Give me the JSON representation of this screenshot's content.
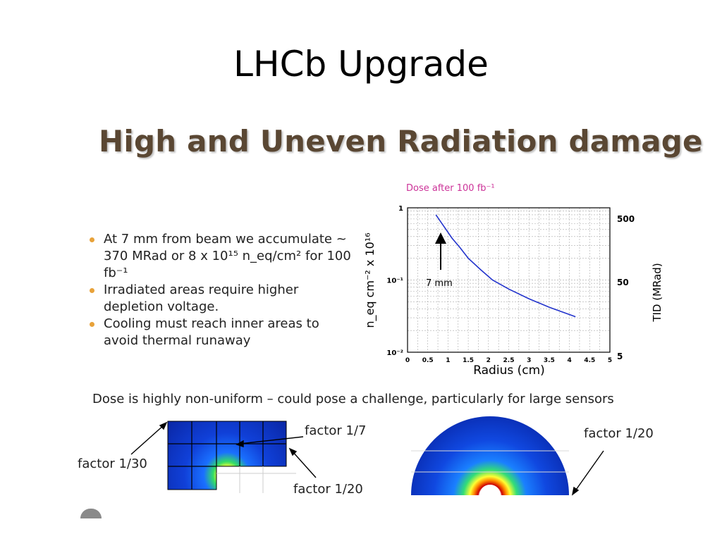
{
  "slide": {
    "title": "LHCb Upgrade",
    "subtitle": "High and Uneven Radiation damage"
  },
  "bullets": [
    {
      "text": "At 7 mm from beam we accumulate ~ 370 MRad or 8 x 10¹⁵ n_eq/cm² for 100 fb⁻¹"
    },
    {
      "text": "Irradiated areas require higher depletion voltage."
    },
    {
      "text": "Cooling must reach inner areas to avoid thermal runaway"
    }
  ],
  "dose_caption": "Dose is highly non-uniform – could pose a challenge, particularly for large sensors",
  "annotations": {
    "factor_30": "factor 1/30",
    "factor_7": "factor 1/7",
    "factor_20_left": "factor 1/20",
    "factor_20_right": "factor 1/20"
  },
  "colors": {
    "subtitle": "#5a4733",
    "bullet": "#e8a23a",
    "curve": "#2233cc",
    "chart_title": "#cc3399",
    "map_blue": "#1033c8"
  },
  "chart_data": {
    "type": "line",
    "title": "Dose after 100 fb⁻¹",
    "xlabel": "Radius (cm)",
    "ylabel": "n_eq cm⁻² x 10¹⁶",
    "y2label": "TID (MRad)",
    "xlim": [
      0,
      5
    ],
    "ylim": [
      0.01,
      1
    ],
    "yscale": "log",
    "x_ticks": [
      "0",
      "0.5",
      "1",
      "1.5",
      "2",
      "2.5",
      "3",
      "3.5",
      "4",
      "4.5",
      "5"
    ],
    "y_ticks": [
      "10⁻²",
      "10⁻¹",
      "1"
    ],
    "y2_ticks": [
      "5",
      "50",
      "500"
    ],
    "grid": true,
    "annotation": "7 mm",
    "series": [
      {
        "x": [
          0.7,
          0.9,
          1.1,
          1.3,
          1.5,
          1.8,
          2.1,
          2.5,
          3.0,
          3.5,
          4.15
        ],
        "values": [
          0.8,
          0.55,
          0.38,
          0.28,
          0.2,
          0.14,
          0.1,
          0.075,
          0.055,
          0.042,
          0.031
        ]
      }
    ]
  }
}
